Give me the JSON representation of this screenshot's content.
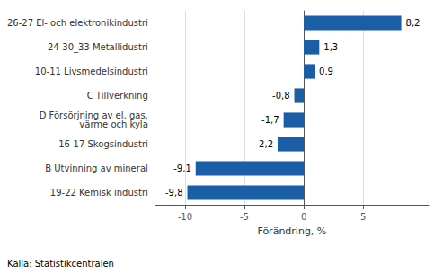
{
  "chart_data": {
    "type": "bar",
    "orientation": "horizontal",
    "categories": [
      "19-22 Kemisk industri",
      "B Utvinning av mineral",
      "16-17 Skogsindustri",
      "D Försörjning av el, gas,\nvärme och kyla",
      "C Tillverkning",
      "10-11 Livsmedelsindustri",
      "24-30_33 Metallidustri",
      "26-27 El- och elektronikindustri"
    ],
    "values": [
      -9.8,
      -9.1,
      -2.2,
      -1.7,
      -0.8,
      0.9,
      1.3,
      8.2
    ],
    "value_labels": [
      "-9,8",
      "-9,1",
      "-2,2",
      "-1,7",
      "-0,8",
      "0,9",
      "1,3",
      "8,2"
    ],
    "data_labels": true,
    "color": "#1a5ea8",
    "xlabel": "Förändring, %",
    "xlim": [
      -12.5,
      10.5
    ],
    "xticks": [
      -10,
      -5,
      0,
      5
    ],
    "grid": true,
    "annotation": "Källa: Statistikcentralen"
  }
}
